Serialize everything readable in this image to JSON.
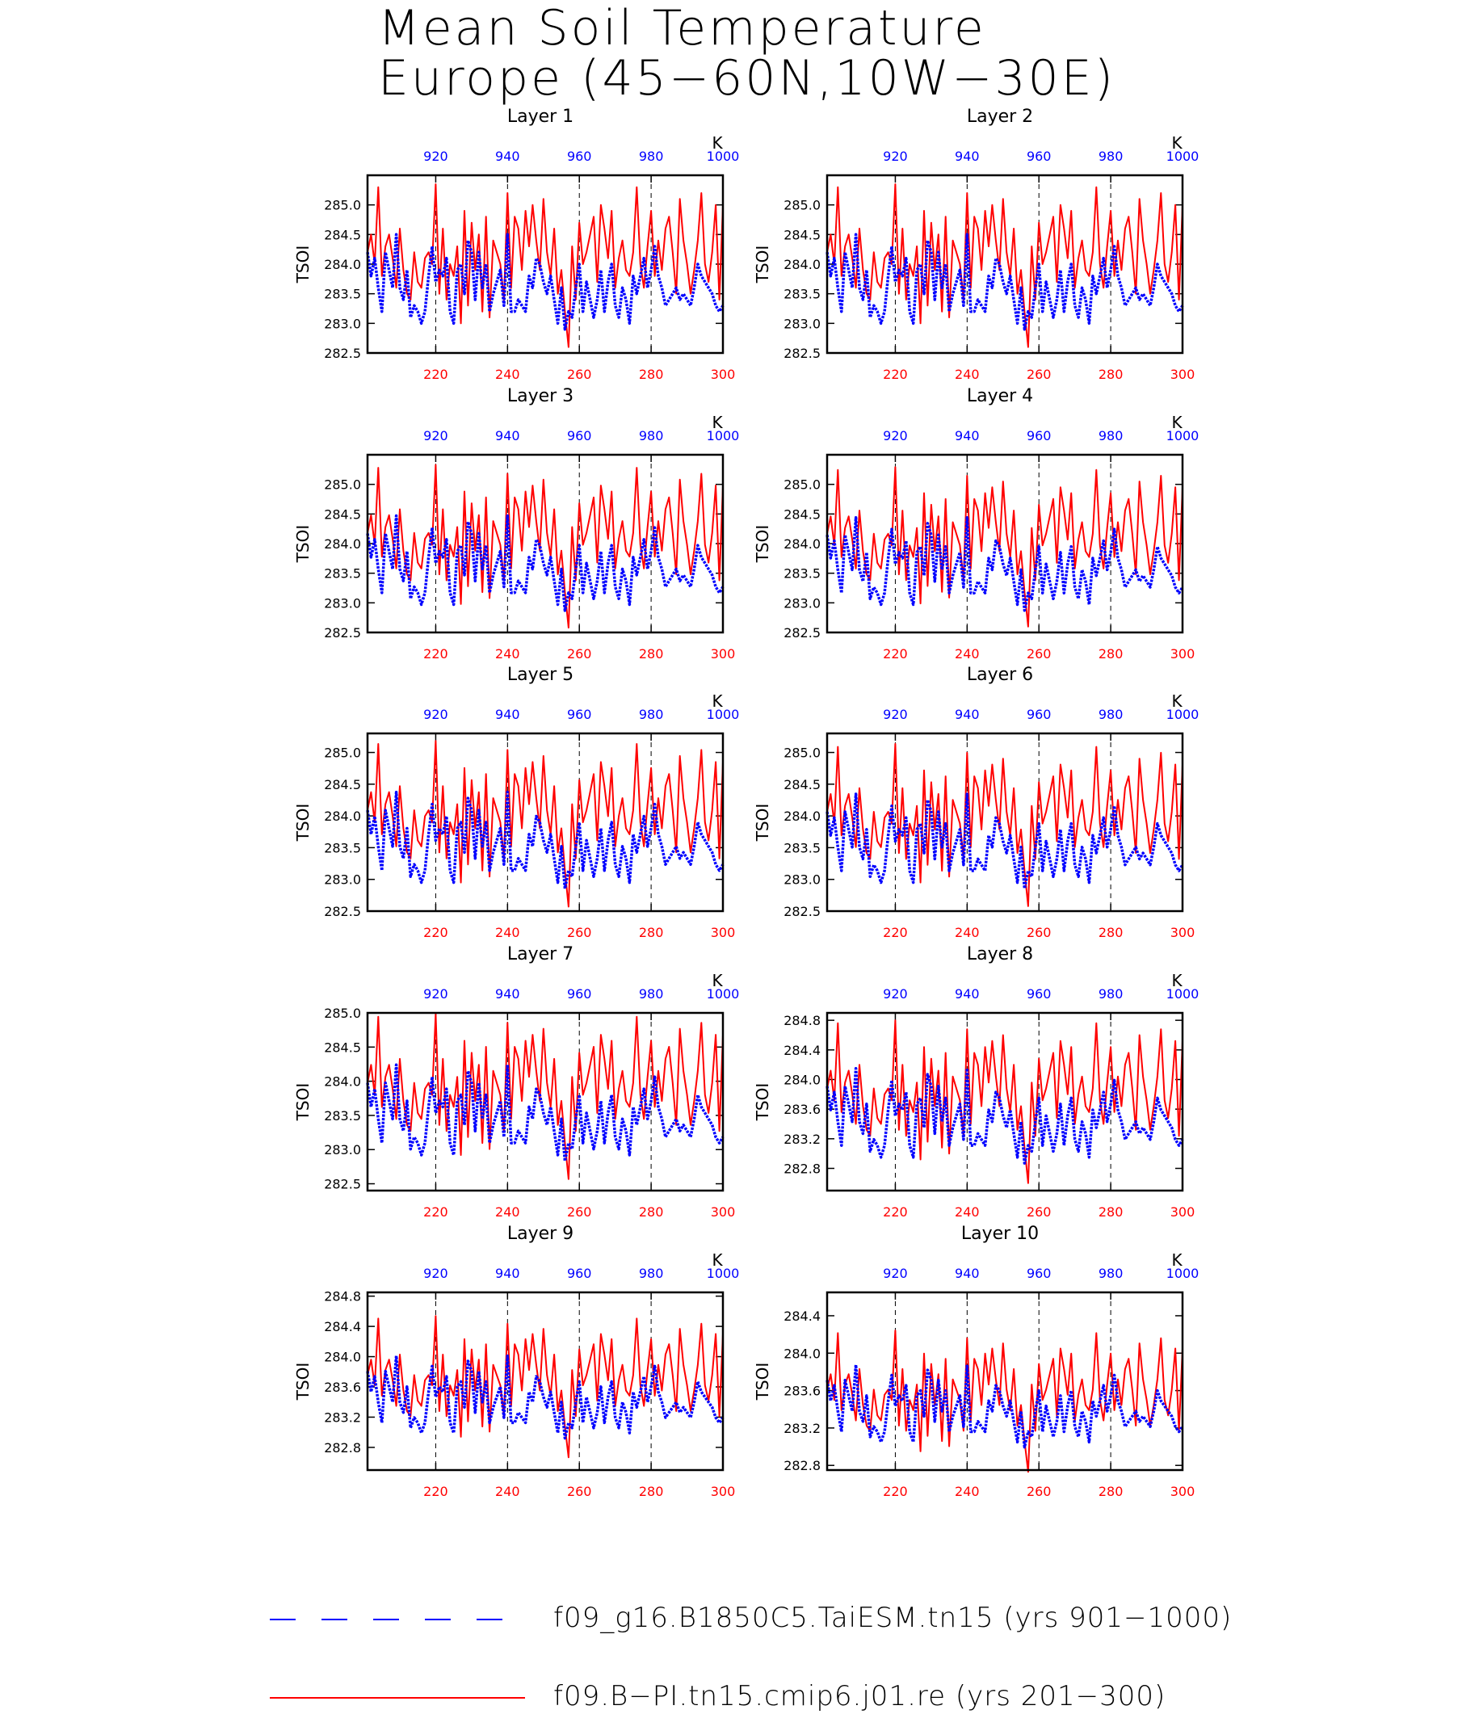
{
  "title_line1": "Mean Soil Temperature",
  "title_line2": "Europe (45−60N,10W−30E)",
  "units_label": "K",
  "ylabel": "TSOI",
  "bottom_axis": {
    "label_color": "#ff0000",
    "ticks": [
      "220",
      "240",
      "260",
      "280",
      "300"
    ],
    "range": [
      201,
      300
    ]
  },
  "top_axis": {
    "label_color": "#0000ff",
    "ticks": [
      "920",
      "940",
      "960",
      "980",
      "1000"
    ],
    "range": [
      901,
      1000
    ]
  },
  "legend": [
    {
      "label": "f09_g16.B1850C5.TaiESM.tn15 (yrs 901−1000)",
      "color": "#0000ff",
      "style": "dashed"
    },
    {
      "label": "f09.B−PI.tn15.cmip6.j01.re (yrs 201−300)",
      "color": "#ff0000",
      "style": "solid"
    }
  ],
  "chart_data": [
    {
      "type": "line",
      "title": "Layer 1",
      "ylabel": "TSOI",
      "ylim": [
        282.5,
        285.5
      ],
      "yticks": [
        "282.5",
        "283.0",
        "283.5",
        "284.0",
        "284.5",
        "285.0"
      ],
      "ytick_values": [
        282.5,
        283.0,
        283.5,
        284.0,
        284.5,
        285.0
      ],
      "red_offset": 0.0,
      "blue_offset": 0.0,
      "spread": 1.0
    },
    {
      "type": "line",
      "title": "Layer 2",
      "ylabel": "TSOI",
      "ylim": [
        282.5,
        285.5
      ],
      "yticks": [
        "282.5",
        "283.0",
        "283.5",
        "284.0",
        "284.5",
        "285.0"
      ],
      "ytick_values": [
        282.5,
        283.0,
        283.5,
        284.0,
        284.5,
        285.0
      ],
      "red_offset": 0.0,
      "blue_offset": 0.0,
      "spread": 1.0
    },
    {
      "type": "line",
      "title": "Layer 3",
      "ylabel": "TSOI",
      "ylim": [
        282.5,
        285.5
      ],
      "yticks": [
        "282.5",
        "283.0",
        "283.5",
        "284.0",
        "284.5",
        "285.0"
      ],
      "ytick_values": [
        282.5,
        283.0,
        283.5,
        284.0,
        284.5,
        285.0
      ],
      "red_offset": -0.02,
      "blue_offset": -0.03,
      "spread": 1.0
    },
    {
      "type": "line",
      "title": "Layer 4",
      "ylabel": "TSOI",
      "ylim": [
        282.5,
        285.5
      ],
      "yticks": [
        "282.5",
        "283.0",
        "283.5",
        "284.0",
        "284.5",
        "285.0"
      ],
      "ytick_values": [
        282.5,
        283.0,
        283.5,
        284.0,
        284.5,
        285.0
      ],
      "red_offset": -0.03,
      "blue_offset": -0.05,
      "spread": 0.98
    },
    {
      "type": "line",
      "title": "Layer 5",
      "ylabel": "TSOI",
      "ylim": [
        282.5,
        285.3
      ],
      "yticks": [
        "282.5",
        "283.0",
        "283.5",
        "284.0",
        "284.5",
        "285.0"
      ],
      "ytick_values": [
        282.5,
        283.0,
        283.5,
        284.0,
        284.5,
        285.0
      ],
      "red_offset": -0.1,
      "blue_offset": -0.1,
      "spread": 0.95
    },
    {
      "type": "line",
      "title": "Layer 6",
      "ylabel": "TSOI",
      "ylim": [
        282.5,
        285.3
      ],
      "yticks": [
        "282.5",
        "283.0",
        "283.5",
        "284.0",
        "284.5",
        "285.0"
      ],
      "ytick_values": [
        282.5,
        283.0,
        283.5,
        284.0,
        284.5,
        285.0
      ],
      "red_offset": -0.12,
      "blue_offset": -0.12,
      "spread": 0.93
    },
    {
      "type": "line",
      "title": "Layer 7",
      "ylabel": "TSOI",
      "ylim": [
        282.4,
        285.0
      ],
      "yticks": [
        "282.5",
        "283.0",
        "283.5",
        "284.0",
        "284.5",
        "285.0"
      ],
      "ytick_values": [
        282.5,
        283.0,
        283.5,
        284.0,
        284.5,
        285.0
      ],
      "red_offset": -0.2,
      "blue_offset": -0.2,
      "spread": 0.88
    },
    {
      "type": "line",
      "title": "Layer 8",
      "ylabel": "TSOI",
      "ylim": [
        282.5,
        284.9
      ],
      "yticks": [
        "282.8",
        "283.2",
        "283.6",
        "284.0",
        "284.4",
        "284.8"
      ],
      "ytick_values": [
        282.8,
        283.2,
        283.6,
        284.0,
        284.4,
        284.8
      ],
      "red_offset": -0.28,
      "blue_offset": -0.25,
      "spread": 0.8
    },
    {
      "type": "line",
      "title": "Layer 9",
      "ylabel": "TSOI",
      "ylim": [
        282.5,
        284.85
      ],
      "yticks": [
        "282.8",
        "283.2",
        "283.6",
        "284.0",
        "284.4",
        "284.8"
      ],
      "ytick_values": [
        282.8,
        283.2,
        283.6,
        284.0,
        284.4,
        284.8
      ],
      "red_offset": -0.38,
      "blue_offset": -0.33,
      "spread": 0.68
    },
    {
      "type": "line",
      "title": "Layer 10",
      "ylabel": "TSOI",
      "ylim": [
        282.75,
        284.65
      ],
      "yticks": [
        "282.8",
        "283.2",
        "283.6",
        "284.0",
        "284.4"
      ],
      "ytick_values": [
        282.8,
        283.2,
        283.6,
        284.0,
        284.4
      ],
      "red_offset": -0.5,
      "blue_offset": -0.4,
      "spread": 0.55
    }
  ],
  "base_series": {
    "red_x_start": 201,
    "red": [
      284.2,
      284.5,
      284.0,
      285.3,
      283.8,
      284.3,
      284.5,
      284.1,
      283.6,
      284.6,
      283.9,
      283.5,
      283.4,
      284.2,
      283.7,
      283.6,
      284.1,
      284.2,
      284.0,
      285.35,
      283.5,
      284.6,
      283.4,
      284.0,
      283.8,
      284.3,
      283.0,
      284.9,
      283.3,
      284.7,
      283.9,
      284.5,
      283.2,
      284.8,
      283.1,
      284.4,
      284.2,
      284.0,
      283.4,
      285.2,
      283.6,
      284.8,
      284.6,
      283.9,
      284.9,
      284.3,
      285.0,
      284.4,
      283.9,
      285.1,
      284.2,
      283.8,
      284.6,
      283.5,
      283.9,
      283.2,
      282.6,
      284.3,
      283.4,
      284.7,
      284.0,
      284.2,
      284.5,
      284.8,
      283.7,
      285.0,
      284.6,
      284.1,
      284.9,
      283.6,
      284.1,
      284.4,
      283.9,
      283.8,
      284.2,
      285.3,
      284.0,
      283.6,
      284.3,
      284.9,
      283.8,
      284.4,
      283.9,
      284.6,
      284.8,
      284.2,
      283.5,
      285.1,
      284.4,
      284.0,
      283.5,
      283.9,
      284.4,
      285.2,
      284.0,
      283.7,
      284.2,
      285.0,
      283.4,
      285.0
    ],
    "blue": [
      284.2,
      283.8,
      284.1,
      283.6,
      283.2,
      284.2,
      283.9,
      283.6,
      284.5,
      283.6,
      283.4,
      283.9,
      283.1,
      283.3,
      283.2,
      283.0,
      283.2,
      283.8,
      284.3,
      283.7,
      283.9,
      283.8,
      284.1,
      283.2,
      283.0,
      283.9,
      284.0,
      283.5,
      284.4,
      284.2,
      283.4,
      284.2,
      283.6,
      284.0,
      283.2,
      283.5,
      283.7,
      283.9,
      283.3,
      284.5,
      283.2,
      283.2,
      283.4,
      283.3,
      283.2,
      283.8,
      283.6,
      284.1,
      284.0,
      283.7,
      283.5,
      283.8,
      283.4,
      283.0,
      283.6,
      282.9,
      283.2,
      283.1,
      283.6,
      284.0,
      283.2,
      283.7,
      283.4,
      283.1,
      283.4,
      283.9,
      283.2,
      283.7,
      284.0,
      283.3,
      283.1,
      283.6,
      283.4,
      283.0,
      283.8,
      283.5,
      283.8,
      284.1,
      283.6,
      283.9,
      284.3,
      283.8,
      283.6,
      283.3,
      283.4,
      283.5,
      283.6,
      283.4,
      283.5,
      283.4,
      283.3,
      283.6,
      284.0,
      283.8,
      283.7,
      283.6,
      283.5,
      283.3,
      283.2,
      283.3
    ]
  }
}
